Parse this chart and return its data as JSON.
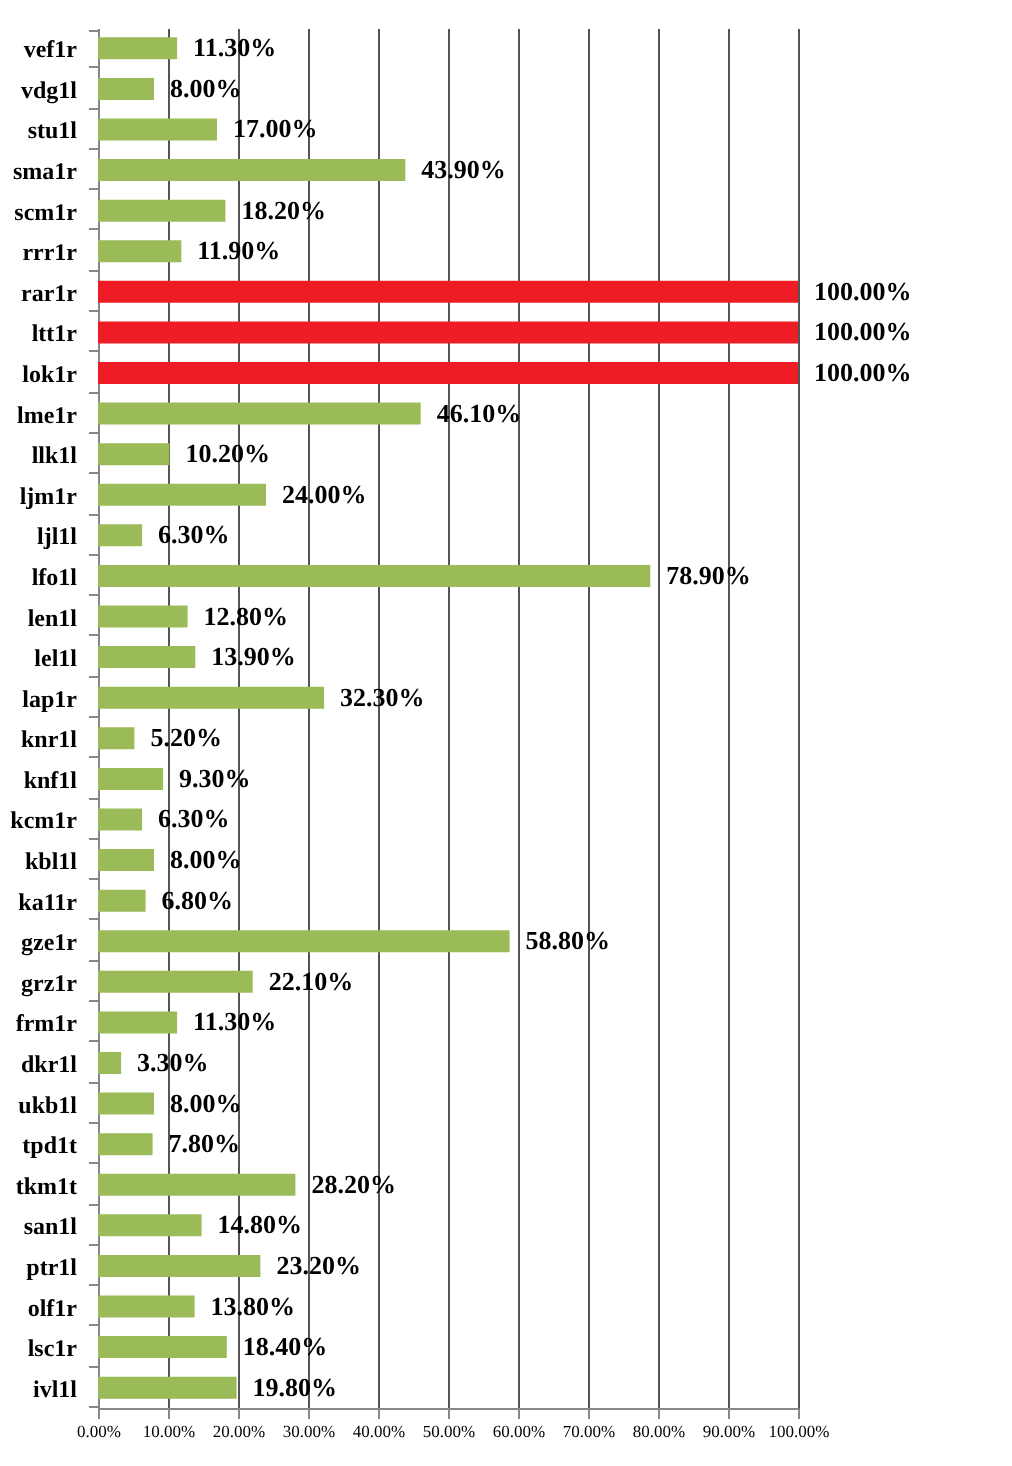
{
  "chart_data": {
    "type": "bar",
    "orientation": "horizontal",
    "categories": [
      "vef1r",
      "vdg1l",
      "stu1l",
      "sma1r",
      "scm1r",
      "rrr1r",
      "rar1r",
      "ltt1r",
      "lok1r",
      "lme1r",
      "llk1l",
      "ljm1r",
      "ljl1l",
      "lfo1l",
      "len1l",
      "lel1l",
      "lap1r",
      "knr1l",
      "knf1l",
      "kcm1r",
      "kbl1l",
      "ka11r",
      "gze1r",
      "grz1r",
      "frm1r",
      "dkr1l",
      "ukb1l",
      "tpd1t",
      "tkm1t",
      "san1l",
      "ptr1l",
      "olf1r",
      "lsc1r",
      "ivl1l"
    ],
    "values": [
      11.3,
      8.0,
      17.0,
      43.9,
      18.2,
      11.9,
      100,
      100,
      100,
      46.1,
      10.2,
      24.0,
      6.3,
      78.9,
      12.8,
      13.9,
      32.3,
      5.2,
      9.3,
      6.3,
      8.0,
      6.8,
      58.8,
      22.1,
      11.3,
      3.3,
      8.0,
      7.8,
      28.2,
      14.8,
      23.2,
      13.8,
      18.4,
      19.8
    ],
    "value_labels": [
      "11.30%",
      "8.00%",
      "17.00%",
      "43.90%",
      "18.20%",
      "11.90%",
      "100.00%",
      "100.00%",
      "100.00%",
      "46.10%",
      "10.20%",
      "24.00%",
      "6.30%",
      "78.90%",
      "12.80%",
      "13.90%",
      "32.30%",
      "5.20%",
      "9.30%",
      "6.30%",
      "8.00%",
      "6.80%",
      "58.80%",
      "22.10%",
      "11.30%",
      "3.30%",
      "8.00%",
      "7.80%",
      "28.20%",
      "14.80%",
      "23.20%",
      "13.80%",
      "18.40%",
      "19.80%"
    ],
    "colors": [
      "#9bbb59",
      "#9bbb59",
      "#9bbb59",
      "#9bbb59",
      "#9bbb59",
      "#9bbb59",
      "#ee1c25",
      "#ee1c25",
      "#ee1c25",
      "#9bbb59",
      "#9bbb59",
      "#9bbb59",
      "#9bbb59",
      "#9bbb59",
      "#9bbb59",
      "#9bbb59",
      "#9bbb59",
      "#9bbb59",
      "#9bbb59",
      "#9bbb59",
      "#9bbb59",
      "#9bbb59",
      "#9bbb59",
      "#9bbb59",
      "#9bbb59",
      "#9bbb59",
      "#9bbb59",
      "#9bbb59",
      "#9bbb59",
      "#9bbb59",
      "#9bbb59",
      "#9bbb59",
      "#9bbb59",
      "#9bbb59"
    ],
    "xlim": [
      0,
      100
    ],
    "xticks": [
      {
        "value": 0,
        "label": "0.00%"
      },
      {
        "value": 10,
        "label": "10.00%"
      },
      {
        "value": 20,
        "label": "20.00%"
      },
      {
        "value": 30,
        "label": "30.00%"
      },
      {
        "value": 40,
        "label": "40.00%"
      },
      {
        "value": 50,
        "label": "50.00%"
      },
      {
        "value": 60,
        "label": "60.00%"
      },
      {
        "value": 70,
        "label": "70.00%"
      },
      {
        "value": 80,
        "label": "80.00%"
      },
      {
        "value": 90,
        "label": "90.00%"
      },
      {
        "value": 100,
        "label": "100.00%"
      }
    ],
    "grid": "x"
  }
}
